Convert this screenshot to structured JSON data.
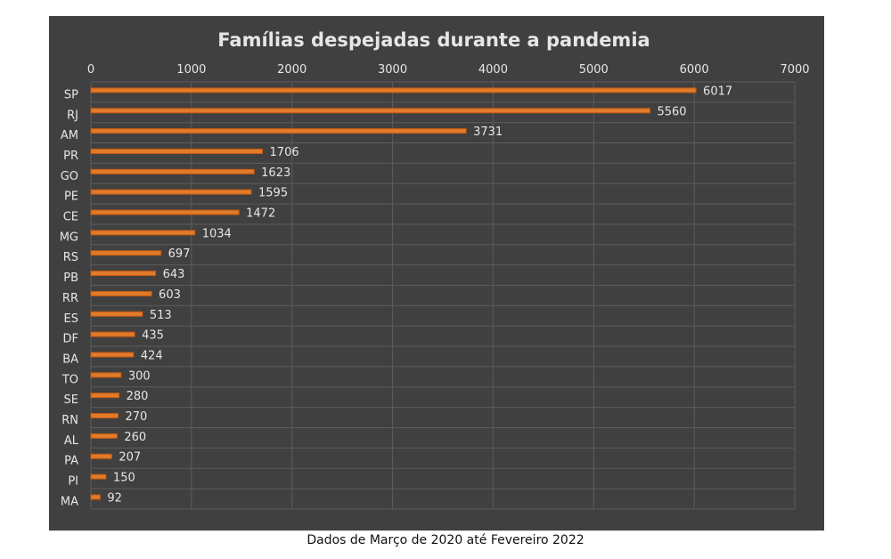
{
  "caption": "Dados de Março de 2020 até Fevereiro 2022",
  "colors": {
    "background": "#404040",
    "bar_fill": "#e07b2a",
    "bar_stroke": "#c55a11",
    "text": "#e6e6e6",
    "grid": "#5c5c5c"
  },
  "chart_data": {
    "type": "bar",
    "orientation": "horizontal",
    "title": "Famílias despejadas durante a pandemia",
    "xlabel": "",
    "ylabel": "",
    "xlim": [
      0,
      7000
    ],
    "xticks": [
      "0",
      "1000",
      "2000",
      "3000",
      "4000",
      "5000",
      "6000",
      "7000"
    ],
    "grid": true,
    "axis_position": "top",
    "categories": [
      "SP",
      "RJ",
      "AM",
      "PR",
      "GO",
      "PE",
      "CE",
      "MG",
      "RS",
      "PB",
      "RR",
      "ES",
      "DF",
      "BA",
      "TO",
      "SE",
      "RN",
      "AL",
      "PA",
      "PI",
      "MA"
    ],
    "values": [
      6017,
      5560,
      3731,
      1706,
      1623,
      1595,
      1472,
      1034,
      697,
      643,
      603,
      513,
      435,
      424,
      300,
      280,
      270,
      260,
      207,
      150,
      92
    ],
    "value_labels": [
      "6017",
      "5560",
      "3731",
      "1706",
      "1623",
      "1595",
      "1472",
      "1034",
      "697",
      "643",
      "603",
      "513",
      "435",
      "424",
      "300",
      "280",
      "270",
      "260",
      "207",
      "150",
      "92"
    ]
  }
}
